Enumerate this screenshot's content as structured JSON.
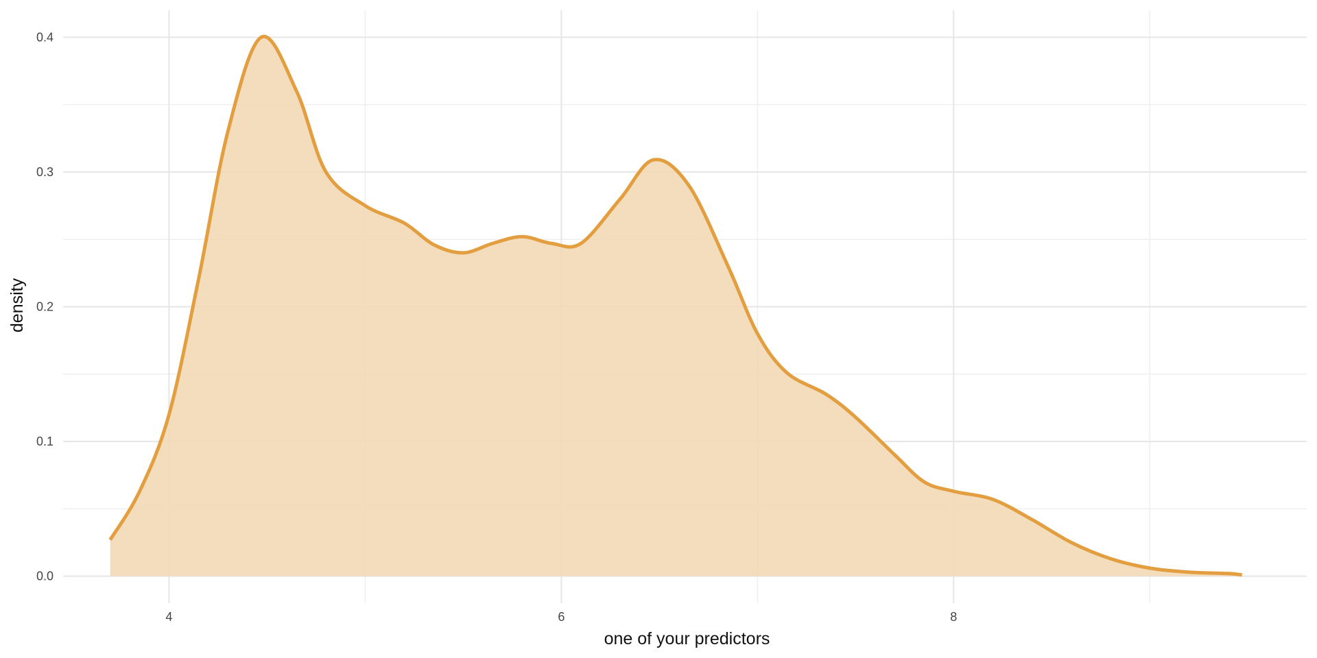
{
  "chart_data": {
    "type": "area",
    "title": "",
    "xlabel": "one of your predictors",
    "ylabel": "density",
    "xlim": [
      3.46,
      9.8
    ],
    "ylim": [
      -0.02,
      0.42
    ],
    "x_ticks": [
      4,
      6,
      8
    ],
    "x_tick_labels": [
      "4",
      "6",
      "8"
    ],
    "x_minor_ticks": [
      5,
      7,
      9
    ],
    "y_ticks": [
      0.0,
      0.1,
      0.2,
      0.3,
      0.4
    ],
    "y_tick_labels": [
      "0.0",
      "0.1",
      "0.2",
      "0.3",
      "0.4"
    ],
    "y_minor_ticks": [
      0.05,
      0.15,
      0.25,
      0.35
    ],
    "grid": true,
    "legend": "none",
    "line_color": "#E29E3F",
    "fill_color": "#F2D7B2",
    "series": [
      {
        "x": [
          3.7,
          3.85,
          4.0,
          4.15,
          4.3,
          4.47,
          4.65,
          4.8,
          5.0,
          5.2,
          5.35,
          5.5,
          5.65,
          5.8,
          5.95,
          6.1,
          6.3,
          6.47,
          6.65,
          6.85,
          7.0,
          7.15,
          7.35,
          7.5,
          7.7,
          7.85,
          8.0,
          8.2,
          8.4,
          8.6,
          8.8,
          9.0,
          9.2,
          9.4,
          9.47
        ],
        "y": [
          0.027,
          0.063,
          0.12,
          0.22,
          0.33,
          0.4,
          0.36,
          0.3,
          0.275,
          0.262,
          0.246,
          0.24,
          0.247,
          0.252,
          0.247,
          0.247,
          0.28,
          0.309,
          0.29,
          0.23,
          0.18,
          0.151,
          0.135,
          0.118,
          0.09,
          0.07,
          0.063,
          0.057,
          0.042,
          0.025,
          0.013,
          0.006,
          0.003,
          0.002,
          0.001
        ]
      }
    ]
  }
}
